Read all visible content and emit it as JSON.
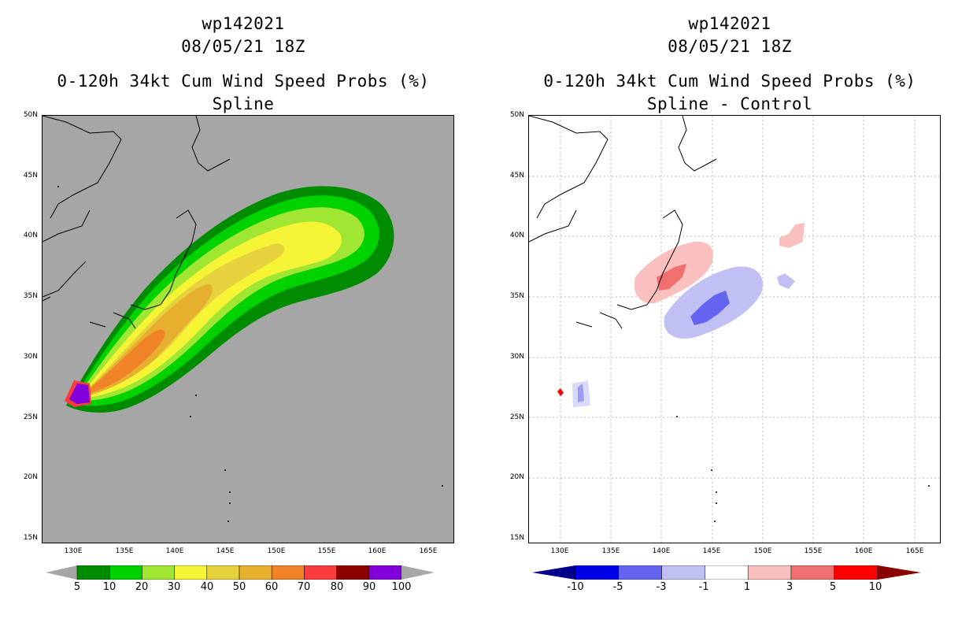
{
  "left": {
    "title_line1": "wp142021",
    "title_line2": "08/05/21 18Z",
    "title_line3": "0-120h 34kt Cum Wind Speed Probs (%)",
    "title_line4": "Spline",
    "colorbar_labels": [
      "5",
      "10",
      "20",
      "30",
      "40",
      "50",
      "60",
      "70",
      "80",
      "90",
      "100"
    ],
    "colorbar_colors": [
      "#008c00",
      "#00d200",
      "#a0e632",
      "#f5f536",
      "#e6d23c",
      "#e6af2d",
      "#f08228",
      "#fa3c3c",
      "#8c0000",
      "#8200dc"
    ]
  },
  "right": {
    "title_line1": "wp142021",
    "title_line2": "08/05/21 18Z",
    "title_line3": "0-120h 34kt Cum Wind Speed Probs (%)",
    "title_line4": "Spline - Control",
    "colorbar_labels": [
      "-10",
      "-5",
      "-3",
      "-1",
      "1",
      "3",
      "5",
      "10"
    ],
    "colorbar_colors": [
      "#0000e6",
      "#6464f0",
      "#c0c0f5",
      "#ffffff",
      "#fac0c0",
      "#f07070",
      "#ff0000"
    ],
    "colorbar_end_colors": [
      "#00008c",
      "#8c0000"
    ]
  },
  "axes": {
    "lat_labels": [
      "50N",
      "45N",
      "40N",
      "35N",
      "30N",
      "25N",
      "20N",
      "15N"
    ],
    "lon_labels": [
      "130E",
      "135E",
      "140E",
      "145E",
      "150E",
      "155E",
      "160E",
      "165E"
    ]
  }
}
